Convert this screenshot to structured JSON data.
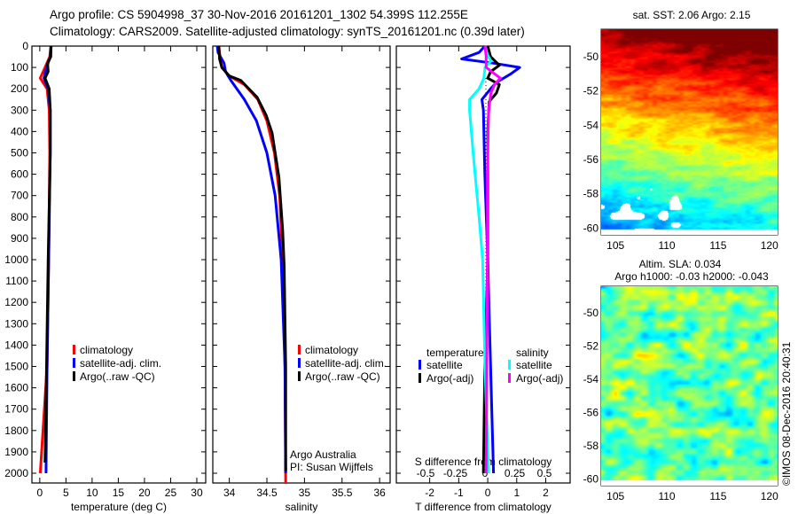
{
  "title_line1": "Argo profile: CS 5904998_37 30-Nov-2016 20161201_1302 54.399S 112.255E",
  "title_line2": "Climatology: CARS2009. Satellite-adjusted climatology: synTS_20161201.nc (0.39d later)",
  "colors": {
    "climatology": "#ff0000",
    "satellite": "#0000ff",
    "argo": "#000000",
    "sal_satellite": "#00ffff",
    "sal_argo": "#ff00ff"
  },
  "chart_data": [
    {
      "type": "line",
      "name": "temperature",
      "xlabel": "temperature (deg C)",
      "xlim": [
        -1.5,
        31.7
      ],
      "ylim": [
        2050,
        0
      ],
      "xticks": [
        0,
        5,
        10,
        15,
        20,
        25,
        30
      ],
      "yticks": [
        0,
        100,
        200,
        300,
        400,
        500,
        600,
        700,
        800,
        900,
        1000,
        1100,
        1200,
        1300,
        1400,
        1500,
        1600,
        1700,
        1800,
        1900,
        2000
      ],
      "legend": [
        "climatology",
        "satellite-adj. clim.",
        "Argo(..raw -QC)"
      ],
      "series": [
        {
          "name": "climatology",
          "color": "#ff0000",
          "depth": [
            0,
            50,
            100,
            150,
            200,
            300,
            500,
            1000,
            1500,
            2000
          ],
          "values": [
            2.1,
            1.9,
            1.0,
            0.1,
            1.4,
            1.8,
            1.9,
            1.7,
            1.4,
            0.1
          ]
        },
        {
          "name": "satellite-adj. clim.",
          "color": "#0000ff",
          "depth": [
            0,
            50,
            100,
            150,
            200,
            300,
            500,
            1000,
            1500,
            2000
          ],
          "values": [
            2.2,
            2.0,
            1.3,
            0.8,
            1.6,
            2.0,
            2.0,
            1.7,
            1.4,
            1.2
          ]
        },
        {
          "name": "Argo(..raw -QC)",
          "color": "#000000",
          "depth": [
            0,
            50,
            80,
            120,
            150,
            200,
            300,
            500,
            1000,
            1500,
            1950
          ],
          "values": [
            2.15,
            2.1,
            1.5,
            1.6,
            1.0,
            1.8,
            2.0,
            2.0,
            1.6,
            1.3,
            1.0
          ]
        }
      ]
    },
    {
      "type": "line",
      "name": "salinity",
      "xlabel": "salinity",
      "xlim": [
        33.78,
        36.14
      ],
      "ylim": [
        2050,
        0
      ],
      "xticks": [
        34,
        34.5,
        35,
        35.5,
        36
      ],
      "legend": [
        "climatology",
        "satellite-adj. clim.",
        "Argo(..raw -QC)"
      ],
      "annotation": [
        "Argo Australia",
        "PI: Susan Wijffels"
      ],
      "series": [
        {
          "name": "climatology",
          "color": "#ff0000",
          "depth": [
            0,
            60,
            100,
            140,
            180,
            250,
            350,
            500,
            700,
            1000,
            1500,
            2050
          ],
          "values": [
            33.86,
            33.88,
            33.9,
            34.0,
            34.2,
            34.38,
            34.5,
            34.6,
            34.67,
            34.71,
            34.74,
            34.75
          ]
        },
        {
          "name": "satellite-adj. clim.",
          "color": "#0000ff",
          "depth": [
            0,
            30,
            80,
            120,
            160,
            250,
            350,
            500,
            700,
            1000,
            1500,
            2000
          ],
          "values": [
            33.84,
            33.85,
            33.93,
            33.95,
            34.02,
            34.2,
            34.36,
            34.5,
            34.61,
            34.69,
            34.74,
            34.75
          ]
        },
        {
          "name": "Argo(..raw -QC)",
          "color": "#000000",
          "depth": [
            0,
            60,
            100,
            140,
            160,
            240,
            324,
            407,
            614,
            863,
            1029,
            1500,
            1990
          ],
          "values": [
            33.86,
            33.87,
            33.9,
            34.0,
            34.15,
            34.37,
            34.49,
            34.57,
            34.66,
            34.71,
            34.73,
            34.75,
            34.75
          ]
        }
      ]
    },
    {
      "type": "line",
      "name": "difference",
      "xlabel": "T difference from climatology",
      "xlabel2": "S difference from climatology",
      "xlim": [
        -3.15,
        2.84
      ],
      "xlim2": [
        -0.5,
        0.5
      ],
      "xticks": [
        -2,
        -1,
        0,
        1,
        2
      ],
      "xticks2": [
        -0.5,
        -0.25,
        0,
        0.25,
        0.5
      ],
      "legend_temperature": {
        "title": "temperature",
        "items": [
          "satellite",
          "Argo(-adj)"
        ]
      },
      "legend_salinity": {
        "title": "salinity",
        "items": [
          "satellite",
          "Argo(-adj)"
        ]
      },
      "series": [
        {
          "name": "T satellite",
          "color": "#0000ff",
          "axis": "T",
          "depth": [
            0,
            30,
            60,
            80,
            100,
            130,
            170,
            200,
            250,
            300,
            600,
            1000,
            1500,
            2000
          ],
          "values": [
            -0.1,
            -0.3,
            -0.9,
            0.2,
            1.1,
            0.8,
            0.3,
            0.1,
            -0.2,
            -0.15,
            -0.1,
            0.0,
            0.1,
            0.2
          ]
        },
        {
          "name": "T Argo(-adj)",
          "color": "#000000",
          "axis": "T",
          "depth": [
            0,
            50,
            90,
            120,
            150,
            180,
            220,
            260,
            400,
            1000,
            1500,
            2000
          ],
          "values": [
            0.0,
            0.1,
            0.4,
            0.1,
            0.0,
            0.4,
            0.3,
            0.05,
            0.0,
            0.0,
            -0.1,
            -0.15
          ]
        },
        {
          "name": "S satellite",
          "color": "#00ffff",
          "axis": "S",
          "depth": [
            0,
            40,
            70,
            100,
            150,
            200,
            250,
            300,
            500,
            800,
            1000,
            1500,
            2000
          ],
          "values": [
            0.0,
            0.02,
            0.05,
            0.0,
            -0.01,
            -0.05,
            -0.13,
            -0.13,
            -0.1,
            -0.05,
            -0.02,
            0.0,
            0.03
          ]
        },
        {
          "name": "S Argo(-adj)",
          "color": "#ff00ff",
          "axis": "S",
          "depth": [
            0,
            50,
            100,
            130,
            150,
            180,
            220,
            300,
            600,
            1000,
            2000
          ],
          "values": [
            0.0,
            0.01,
            0.01,
            0.08,
            0.13,
            0.08,
            0.05,
            0.03,
            0.02,
            0.02,
            0.01
          ]
        }
      ]
    }
  ],
  "maps": [
    {
      "title": "sat. SST: 2.06 Argo: 2.15",
      "lon_ticks": [
        105,
        110,
        115,
        120
      ],
      "lat_ticks": [
        -50,
        -52,
        -54,
        -56,
        -58,
        -60
      ],
      "lon_range": [
        103.6,
        120.8
      ],
      "lat_range": [
        -48.4,
        -60.4
      ]
    },
    {
      "title1": "Altim. SLA: 0.034",
      "title2": "Argo h1000: -0.03 h2000: -0.043",
      "lon_ticks": [
        105,
        110,
        115,
        120
      ],
      "lat_ticks": [
        -50,
        -52,
        -54,
        -56,
        -58,
        -60
      ],
      "lon_range": [
        103.6,
        120.8
      ],
      "lat_range": [
        -48.4,
        -60.4
      ]
    }
  ],
  "credit": "©IMOS 08-Dec-2016 20:40:31"
}
